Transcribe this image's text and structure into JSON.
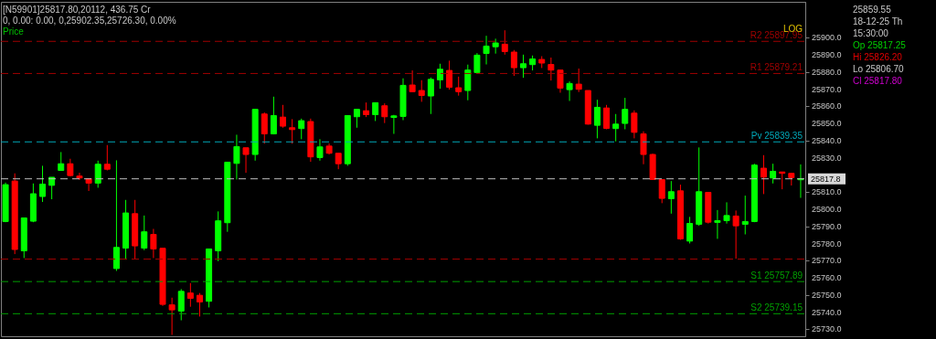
{
  "chart_data": {
    "type": "candlestick",
    "categories": [
      null,
      null,
      null,
      null,
      null,
      null,
      null,
      null,
      null,
      null,
      null,
      null,
      null,
      null,
      null,
      null,
      null,
      null,
      null,
      null,
      null,
      null,
      null,
      null,
      null,
      null,
      null,
      null,
      null,
      null,
      null,
      null,
      null,
      null,
      null,
      null,
      null,
      null,
      null,
      null,
      null,
      null,
      null,
      null,
      null,
      null,
      null,
      null,
      null,
      null,
      null,
      null,
      null,
      null,
      null,
      null,
      null,
      null,
      null,
      null,
      null,
      null,
      null,
      null,
      null,
      null,
      null,
      null,
      null,
      null,
      null,
      null,
      null,
      null,
      null,
      null,
      null,
      null,
      null,
      null,
      null,
      null,
      null,
      null,
      null,
      null,
      null
    ],
    "ohlc": [
      [
        25792.9,
        25815.6,
        25792.5,
        25814.4
      ],
      [
        25816.5,
        25821.0,
        25773.9,
        25776.6
      ],
      [
        25775.8,
        25795.0,
        25771.6,
        25795.0
      ],
      [
        25793.1,
        25815.1,
        25792.5,
        25809.1
      ],
      [
        25807.5,
        25825.4,
        25804.3,
        25814.7
      ],
      [
        25814.0,
        25818.7,
        25805.9,
        25818.7
      ],
      [
        25822.7,
        25833.4,
        25822.7,
        25826.6
      ],
      [
        25826.6,
        25829.5,
        25819.2,
        25819.7
      ],
      [
        25819.4,
        25821.3,
        25817.1,
        25818.3
      ],
      [
        25817.9,
        25817.9,
        25810.7,
        25815.3
      ],
      [
        25815.3,
        25828.4,
        25812.6,
        25826.3
      ],
      [
        25826.3,
        25837.5,
        25822.7,
        25823.4
      ],
      [
        25765.5,
        25828.6,
        25764.1,
        25777.8
      ],
      [
        25777.4,
        25805.5,
        25771.2,
        25797.9
      ],
      [
        25797.5,
        25805.5,
        25771.2,
        25778.7
      ],
      [
        25777.4,
        25796.4,
        25776.2,
        25786.9
      ],
      [
        25785.4,
        25788.6,
        25771.6,
        25776.9
      ],
      [
        25777.3,
        25777.3,
        25743.7,
        25744.6
      ],
      [
        25744.3,
        25748.5,
        25726.8,
        25741.4
      ],
      [
        25740.7,
        25753.5,
        25735.3,
        25752.2
      ],
      [
        25751.2,
        25757.0,
        25743.2,
        25748.1
      ],
      [
        25749.9,
        25751.2,
        25737.5,
        25746.0
      ],
      [
        25746.4,
        25776.9,
        25742.8,
        25776.9
      ],
      [
        25775.8,
        25798.8,
        25769.8,
        25793.3
      ],
      [
        25792.2,
        25827.5,
        25786.9,
        25827.5
      ],
      [
        25826.8,
        25843.5,
        25817.4,
        25836.6
      ],
      [
        25835.9,
        25835.9,
        25821.3,
        25832.0
      ],
      [
        25832.0,
        25858.3,
        25828.4,
        25858.3
      ],
      [
        25855.6,
        25856.5,
        25838.4,
        25844.0
      ],
      [
        25844.0,
        25865.7,
        25843.7,
        25854.7
      ],
      [
        25853.8,
        25860.9,
        25847.6,
        25848.5
      ],
      [
        25847.6,
        25852.6,
        25838.4,
        25846.5
      ],
      [
        25847.1,
        25852.9,
        25840.9,
        25851.7
      ],
      [
        25851.2,
        25852.9,
        25827.7,
        25830.6
      ],
      [
        25830.2,
        25840.9,
        25828.4,
        25836.4
      ],
      [
        25836.9,
        25838.4,
        25832.0,
        25832.7
      ],
      [
        25832.7,
        25832.7,
        25823.4,
        25826.6
      ],
      [
        25826.6,
        25854.7,
        25825.4,
        25854.7
      ],
      [
        25854.0,
        25858.3,
        25847.6,
        25858.3
      ],
      [
        25857.5,
        25862.3,
        25853.8,
        25855.2
      ],
      [
        25855.2,
        25862.2,
        25851.5,
        25862.2
      ],
      [
        25860.4,
        25861.8,
        25850.3,
        25854.0
      ],
      [
        25853.6,
        25855.1,
        25844.0,
        25854.5
      ],
      [
        25854.2,
        25876.4,
        25852.0,
        25872.3
      ],
      [
        25872.5,
        25881.0,
        25868.6,
        25868.6
      ],
      [
        25869.3,
        25875.3,
        25862.7,
        25866.4
      ],
      [
        25866.1,
        25876.9,
        25855.6,
        25875.8
      ],
      [
        25875.5,
        25884.9,
        25870.3,
        25881.7
      ],
      [
        25881.0,
        25886.7,
        25869.8,
        25871.2
      ],
      [
        25870.9,
        25877.4,
        25866.3,
        25868.6
      ],
      [
        25869.3,
        25884.4,
        25863.6,
        25881.2
      ],
      [
        25879.8,
        25891.1,
        25879.6,
        25889.9
      ],
      [
        25890.9,
        25901.2,
        25884.5,
        25895.2
      ],
      [
        25894.8,
        25899.5,
        25890.8,
        25897.0
      ],
      [
        25896.3,
        25904.4,
        25890.2,
        25892.0
      ],
      [
        25891.7,
        25892.9,
        25877.8,
        25882.6
      ],
      [
        25882.6,
        25890.2,
        25876.7,
        25884.9
      ],
      [
        25884.4,
        25889.7,
        25881.0,
        25887.7
      ],
      [
        25887.4,
        25889.3,
        25882.4,
        25885.3
      ],
      [
        25884.5,
        25888.5,
        25875.1,
        25881.2
      ],
      [
        25881.2,
        25881.2,
        25868.0,
        25870.7
      ],
      [
        25869.8,
        25874.6,
        25863.2,
        25873.4
      ],
      [
        25873.0,
        25882.1,
        25868.4,
        25870.0
      ],
      [
        25869.3,
        25869.3,
        25849.4,
        25849.7
      ],
      [
        25849.0,
        25863.9,
        25841.4,
        25859.5
      ],
      [
        25859.1,
        25860.9,
        25846.7,
        25847.2
      ],
      [
        25847.1,
        25855.6,
        25839.6,
        25849.7
      ],
      [
        25850.1,
        25865.0,
        25846.7,
        25858.3
      ],
      [
        25856.1,
        25857.7,
        25841.4,
        25844.9
      ],
      [
        25844.0,
        25845.5,
        25826.3,
        25832.0
      ],
      [
        25832.0,
        25832.5,
        25817.4,
        25817.4
      ],
      [
        25817.4,
        25817.4,
        25803.6,
        25806.4
      ],
      [
        25806.2,
        25816.5,
        25797.5,
        25810.3
      ],
      [
        25810.8,
        25814.4,
        25782.2,
        25782.8
      ],
      [
        25781.5,
        25795.6,
        25780.1,
        25791.8
      ],
      [
        25791.3,
        25836.1,
        25790.4,
        25810.3
      ],
      [
        25809.9,
        25809.9,
        25791.7,
        25792.5
      ],
      [
        25792.4,
        25799.6,
        25782.8,
        25793.4
      ],
      [
        25793.4,
        25804.1,
        25791.7,
        25796.4
      ],
      [
        25796.1,
        25799.3,
        25771.2,
        25790.4
      ],
      [
        25791.3,
        25808.0,
        25785.4,
        25792.9
      ],
      [
        25792.9,
        25826.6,
        25792.5,
        25825.8
      ],
      [
        25824.0,
        25831.6,
        25808.9,
        25818.8
      ],
      [
        25818.3,
        25826.6,
        25815.1,
        25822.2
      ],
      [
        25821.8,
        25821.8,
        25811.7,
        25821.0
      ],
      [
        25821.0,
        25821.0,
        25813.9,
        25818.5
      ],
      [
        25817.25,
        25826.2,
        25806.7,
        25817.8
      ]
    ],
    "colors": [
      "#00ff00",
      "#ff0000",
      "#00ff00",
      "#00ff00",
      "#00ff00",
      "#00ff00",
      "#00ff00",
      "#ff0000",
      "#ff0000",
      "#ff0000",
      "#00ff00",
      "#ff0000",
      "#00ff00",
      "#00ff00",
      "#ff0000",
      "#00ff00",
      "#ff0000",
      "#ff0000",
      "#ff0000",
      "#00ff00",
      "#ff0000",
      "#ff0000",
      "#00ff00",
      "#00ff00",
      "#00ff00",
      "#00ff00",
      "#ff0000",
      "#00ff00",
      "#ff0000",
      "#00ff00",
      "#ff0000",
      "#ff0000",
      "#00ff00",
      "#ff0000",
      "#00ff00",
      "#ff0000",
      "#ff0000",
      "#00ff00",
      "#00ff00",
      "#ff0000",
      "#00ff00",
      "#ff0000",
      "#00ff00",
      "#00ff00",
      "#ff0000",
      "#ff0000",
      "#00ff00",
      "#00ff00",
      "#ff0000",
      "#ff0000",
      "#00ff00",
      "#00ff00",
      "#00ff00",
      "#00ff00",
      "#ff0000",
      "#ff0000",
      "#00ff00",
      "#00ff00",
      "#ff0000",
      "#ff0000",
      "#ff0000",
      "#00ff00",
      "#ff0000",
      "#ff0000",
      "#00ff00",
      "#ff0000",
      "#00ff00",
      "#00ff00",
      "#ff0000",
      "#ff0000",
      "#ff0000",
      "#ff0000",
      "#00ff00",
      "#ff0000",
      "#00ff00",
      "#00ff00",
      "#ff0000",
      "#00ff00",
      "#00ff00",
      "#ff0000",
      "#00ff00",
      "#00ff00",
      "#ff0000",
      "#00ff00",
      "#ff0000",
      "#ff0000",
      "#00ff00"
    ],
    "ylim": [
      25726,
      25921
    ],
    "yticks": [
      {
        "value": 25730,
        "label": "25730.0"
      },
      {
        "value": 25740,
        "label": "25740.0"
      },
      {
        "value": 25750,
        "label": "25750.0"
      },
      {
        "value": 25760,
        "label": "25760.0"
      },
      {
        "value": 25770,
        "label": "25770.0"
      },
      {
        "value": 25780,
        "label": "25780.0"
      },
      {
        "value": 25790,
        "label": "25790.0"
      },
      {
        "value": 25800,
        "label": "25800.0"
      },
      {
        "value": 25810,
        "label": "25810.0"
      },
      {
        "value": 25830,
        "label": "25830.0"
      },
      {
        "value": 25840,
        "label": "25840.0"
      },
      {
        "value": 25850,
        "label": "25850.0"
      },
      {
        "value": 25860,
        "label": "25860.0"
      },
      {
        "value": 25870,
        "label": "25870.0"
      },
      {
        "value": 25880,
        "label": "25880.0"
      },
      {
        "value": 25890,
        "label": "25890.0"
      },
      {
        "value": 25900,
        "label": "25900.0"
      }
    ],
    "tick_labels": "y",
    "ref_lines": [
      {
        "axis": "y",
        "value": 25897.95,
        "label": "R2 25897.95",
        "color": "#a00000",
        "line_style": "dashed"
      },
      {
        "axis": "y",
        "value": 25879.21,
        "label": "R1 25879.21",
        "color": "#a00000",
        "line_style": "dashed"
      },
      {
        "axis": "y",
        "value": 25839.35,
        "label": "Pv 25839.35",
        "color": "#00a8b8",
        "line_style": "dashed"
      },
      {
        "axis": "y",
        "value": 25817.8,
        "label": "25817.8",
        "color": "#c0c0c0",
        "line_style": "dashed"
      },
      {
        "axis": "y",
        "value": 25771,
        "color": "#a00000",
        "line_style": "dashed"
      },
      {
        "axis": "y",
        "value": 25757.89,
        "label": "S1 25757.89",
        "color": "#00a000",
        "line_style": "dashed"
      },
      {
        "axis": "y",
        "value": 25739.15,
        "label": "S2 25739.15",
        "color": "#00a000",
        "line_style": "dashed"
      }
    ],
    "annotations": [
      "[N59901]25817.80,20112, 436.75 Cr",
      "0, 0.00: 0.00, 0,25902.35,25726.30, 0.00%",
      "Price",
      "LOG",
      "25859.55",
      "18-12-25 Th",
      "15:30:00",
      "Op 25817.25",
      "Hi 25826.20",
      "Lo 25806.70",
      "Cl 25817.80"
    ]
  }
}
